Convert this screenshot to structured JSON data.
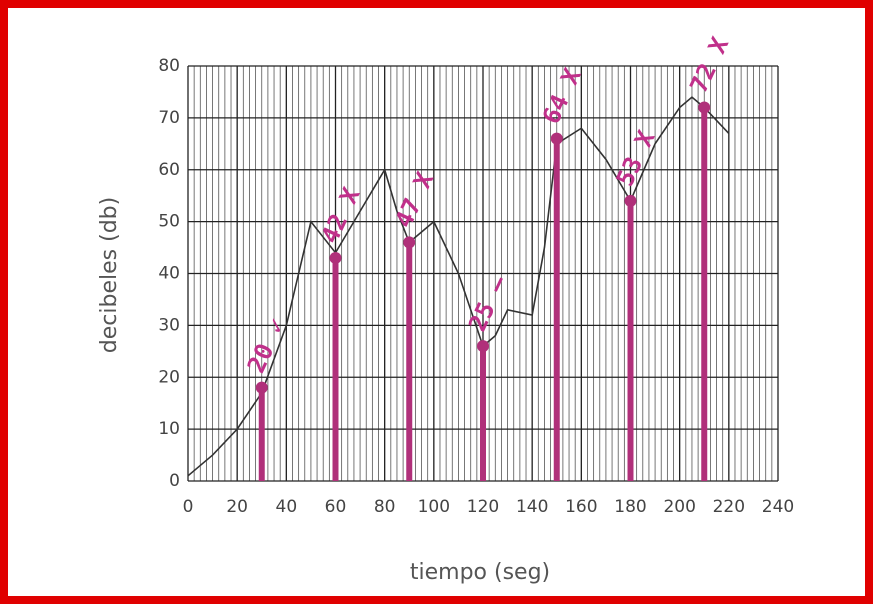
{
  "chart_data": {
    "type": "line",
    "xlabel": "tiempo (seg)",
    "ylabel": "decibeles (db)",
    "x": [
      0,
      10,
      20,
      30,
      40,
      50,
      55,
      60,
      70,
      80,
      85,
      90,
      95,
      100,
      110,
      120,
      125,
      130,
      140,
      145,
      150,
      160,
      170,
      180,
      190,
      200,
      205,
      210,
      220
    ],
    "series": [
      {
        "color": "#333333",
        "values": [
          1,
          5,
          10,
          17,
          30,
          50,
          47,
          44,
          52,
          60,
          52,
          46,
          48,
          50,
          40,
          26,
          28,
          33,
          32,
          45,
          65,
          68,
          62,
          54,
          65,
          72,
          74,
          72,
          67
        ]
      }
    ],
    "bars": {
      "color": "#b0307a",
      "x": [
        30,
        60,
        90,
        120,
        150,
        180,
        210
      ],
      "values": [
        18,
        43,
        46,
        26,
        66,
        54,
        72
      ]
    },
    "annotations": [
      "20 ✓",
      "42 X",
      "47 X",
      "25 –",
      "64 X",
      "53 X",
      "72 X"
    ],
    "xlim": [
      0,
      240
    ],
    "ylim": [
      0,
      80
    ],
    "xticks": [
      0,
      20,
      40,
      60,
      80,
      100,
      120,
      140,
      160,
      180,
      200,
      220,
      240
    ],
    "yticks": [
      0,
      10,
      20,
      30,
      40,
      50,
      60,
      70,
      80
    ],
    "grid": true
  }
}
